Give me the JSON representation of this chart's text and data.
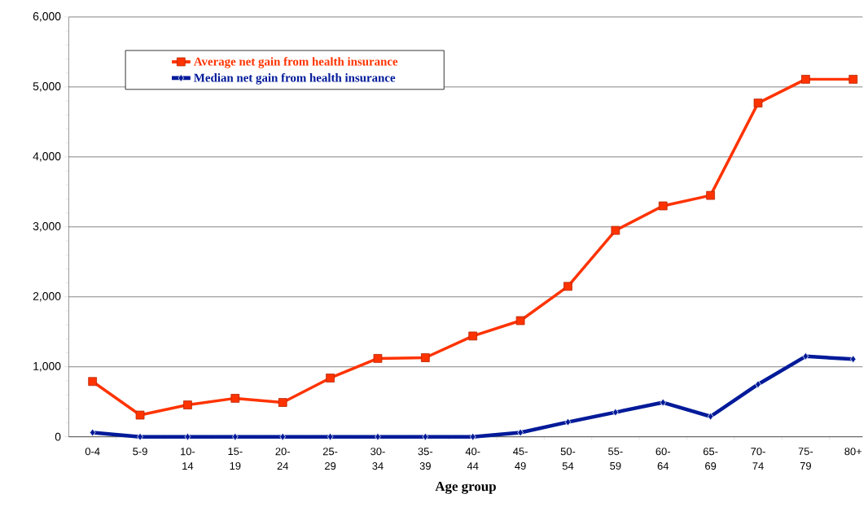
{
  "chart_data": {
    "type": "line",
    "xlabel": "Age group",
    "categories": [
      "0-4",
      "5-9",
      "10- 14",
      "15- 19",
      "20- 24",
      "25- 29",
      "30- 34",
      "35- 39",
      "40- 44",
      "45- 49",
      "50- 54",
      "55- 59",
      "60- 64",
      "65- 69",
      "70- 74",
      "75- 79",
      "80+"
    ],
    "series": [
      {
        "name": "Average net gain from health insurance",
        "color": "#ff3300",
        "marker": "square",
        "values": [
          790,
          310,
          455,
          550,
          490,
          840,
          1120,
          1130,
          1440,
          1660,
          2150,
          2950,
          3300,
          3450,
          4770,
          5110,
          5110
        ]
      },
      {
        "name": "Median net gain from health insurance",
        "color": "#001a99",
        "marker": "diamond",
        "values": [
          60,
          0,
          0,
          0,
          0,
          0,
          0,
          0,
          0,
          60,
          210,
          350,
          490,
          290,
          750,
          1150,
          1110
        ]
      }
    ],
    "ylim": [
      0,
      6000
    ],
    "yticks": [
      0,
      {
        "value": 1000,
        "label": "1,000"
      },
      {
        "value": 2000,
        "label": "2,000"
      },
      {
        "value": 3000,
        "label": "3,000"
      },
      {
        "value": 4000,
        "label": "4,000"
      },
      {
        "value": 5000,
        "label": "5,000"
      },
      {
        "value": 6000,
        "label": "6,000"
      }
    ],
    "grid": "y",
    "legend": "top left",
    "line_style": "solid"
  }
}
